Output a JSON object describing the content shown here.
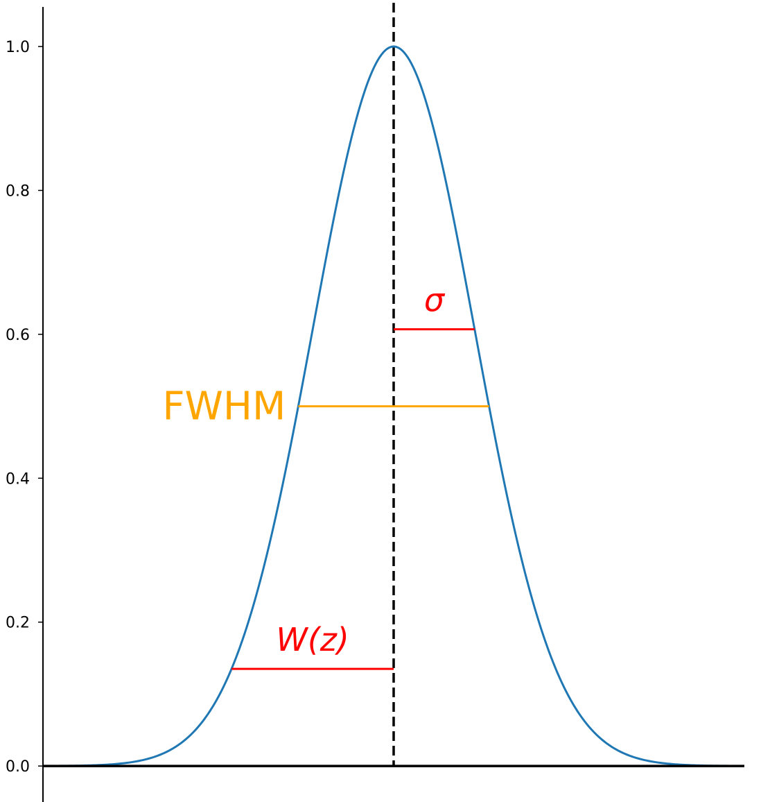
{
  "colors": {
    "curve": "#1f77b4",
    "annotation_red": "#ff0000",
    "fwhm": "#ffa500",
    "axis": "#000000"
  },
  "chart_data": {
    "type": "line",
    "title": "",
    "xlabel": "",
    "ylabel": "",
    "xlim": [
      -5,
      5
    ],
    "ylim": [
      -0.05,
      1.055
    ],
    "grid": false,
    "yticks": [
      0.0,
      0.2,
      0.4,
      0.6,
      0.8,
      1.0
    ],
    "ytick_labels": [
      "0.0",
      "0.2",
      "0.4",
      "0.6",
      "0.8",
      "1.0"
    ],
    "series": [
      {
        "function": "gaussian",
        "mean": 0,
        "sigma": 1.155,
        "amplitude": 1.0,
        "x_range": [
          -5,
          5
        ]
      }
    ],
    "center_line": {
      "x": 0,
      "style": "dashed"
    },
    "annotations": [
      {
        "label": "FWHM",
        "y": 0.5,
        "x_start": -1.36,
        "x_end": 1.36,
        "color": "#ffa500"
      },
      {
        "label": "σ",
        "y": 0.607,
        "x_start": 0,
        "x_end": 1.155,
        "color": "#ff0000"
      },
      {
        "label": "W(z)",
        "y": 0.135,
        "x_start": -2.31,
        "x_end": 0,
        "color": "#ff0000"
      }
    ]
  }
}
